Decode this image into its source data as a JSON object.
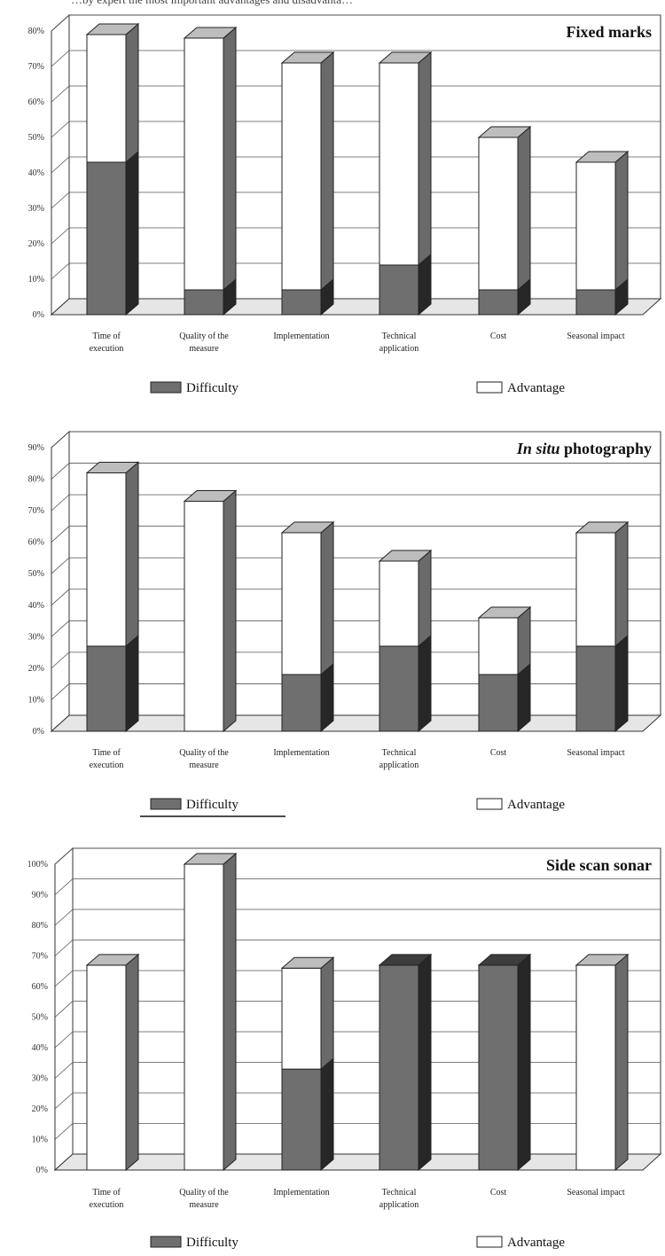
{
  "caption_fragment": "…by expert the most important advantages and disadvanta…",
  "legend": {
    "difficulty": "Difficulty",
    "advantage": "Advantage"
  },
  "colors": {
    "difficulty": "#6f6f6f",
    "advantage": "#ffffff",
    "top": "#bdbdbd"
  },
  "chart_data": [
    {
      "type": "bar",
      "stacked": true,
      "title": "Fixed marks",
      "categories": [
        [
          "Time of",
          "execution"
        ],
        [
          "Quality of the",
          "measure"
        ],
        [
          "Implementation"
        ],
        [
          "Technical",
          "application"
        ],
        [
          "Cost"
        ],
        [
          "Seasonal impact"
        ]
      ],
      "series": [
        {
          "name": "Difficulty",
          "values": [
            43,
            7,
            7,
            14,
            7,
            7
          ]
        },
        {
          "name": "Advantage",
          "values": [
            36,
            71,
            64,
            57,
            43,
            36
          ]
        }
      ],
      "ylim": [
        0,
        80
      ],
      "yticks": [
        "0%",
        "10%",
        "20%",
        "30%",
        "40%",
        "50%",
        "60%",
        "70%",
        "80%"
      ],
      "grid": true,
      "legend_position": "bottom"
    },
    {
      "type": "bar",
      "stacked": true,
      "title": "photography",
      "title_italic": "In situ",
      "categories": [
        [
          "Time of",
          "execution"
        ],
        [
          "Quality of the",
          "measure"
        ],
        [
          "Implementation"
        ],
        [
          "Technical",
          "application"
        ],
        [
          "Cost"
        ],
        [
          "Seasonal impact"
        ]
      ],
      "series": [
        {
          "name": "Difficulty",
          "values": [
            27,
            0,
            18,
            27,
            18,
            27
          ]
        },
        {
          "name": "Advantage",
          "values": [
            55,
            73,
            45,
            27,
            18,
            36
          ]
        }
      ],
      "ylim": [
        0,
        90
      ],
      "yticks": [
        "0%",
        "10%",
        "20%",
        "30%",
        "40%",
        "50%",
        "60%",
        "70%",
        "80%",
        "90%"
      ],
      "grid": true,
      "legend_position": "bottom"
    },
    {
      "type": "bar",
      "stacked": true,
      "title": "Side scan sonar",
      "categories": [
        [
          "Time of",
          "execution"
        ],
        [
          "Quality of the",
          "measure"
        ],
        [
          "Implementation"
        ],
        [
          "Technical",
          "application"
        ],
        [
          "Cost"
        ],
        [
          "Seasonal impact"
        ]
      ],
      "series": [
        {
          "name": "Difficulty",
          "values": [
            0,
            0,
            33,
            67,
            67,
            0
          ]
        },
        {
          "name": "Advantage",
          "values": [
            67,
            100,
            33,
            0,
            0,
            67
          ]
        }
      ],
      "ylim": [
        0,
        100
      ],
      "yticks": [
        "0%",
        "10%",
        "20%",
        "30%",
        "40%",
        "50%",
        "60%",
        "70%",
        "80%",
        "90%",
        "100%"
      ],
      "grid": true,
      "legend_position": "bottom"
    }
  ]
}
